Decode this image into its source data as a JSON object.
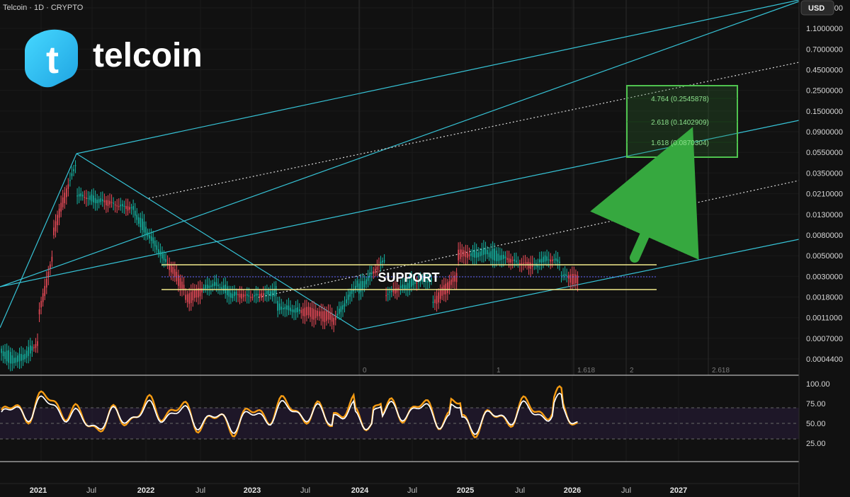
{
  "header": {
    "symbol_line": "Telcoin · 1D · CRYPTO",
    "currency": "USD"
  },
  "brand": {
    "name": "telcoin",
    "icon": "telcoin-logo-icon",
    "icon_letter": "t"
  },
  "annotations": {
    "support_label": "SUPPORT",
    "target_box": [
      "4.764 (0.2545878)",
      "2.618 (0.1402909)",
      "1.618 (0.0870304)"
    ]
  },
  "colors": {
    "channel": "#36c3d6",
    "dotted": "#d8d8d8",
    "support": "#f1ea8b",
    "target_border": "#4fc34f",
    "target_fill": "#2d6f2d",
    "arrow": "#36a83f",
    "rsi_main": "#f59b12",
    "rsi_signal": "#ffffff",
    "candle_up": "#14b8a6",
    "candle_down": "#ef4c5a",
    "axis_text": "#d7d7d7"
  },
  "chart_data": {
    "type": "line",
    "title": "Telcoin · 1D · CRYPTO",
    "currency": "USD",
    "y_scale": "log",
    "y_ticks": [
      "1.8000000",
      "1.1000000",
      "0.7000000",
      "0.4500000",
      "0.2500000",
      "0.1500000",
      "0.0900000",
      "0.0550000",
      "0.0350000",
      "0.0210000",
      "0.0130000",
      "0.0080000",
      "0.0050000",
      "0.0030000",
      "0.0018000",
      "0.0011000",
      "0.0007000",
      "0.0004400"
    ],
    "x_ticks": [
      {
        "label": "2021",
        "year": true
      },
      {
        "label": "Jul",
        "year": false
      },
      {
        "label": "2022",
        "year": true
      },
      {
        "label": "Jul",
        "year": false
      },
      {
        "label": "2023",
        "year": true
      },
      {
        "label": "Jul",
        "year": false
      },
      {
        "label": "2024",
        "year": true
      },
      {
        "label": "Jul",
        "year": false
      },
      {
        "label": "2025",
        "year": true
      },
      {
        "label": "Jul",
        "year": false
      },
      {
        "label": "2026",
        "year": true
      },
      {
        "label": "Jul",
        "year": false
      },
      {
        "label": "2027",
        "year": true
      }
    ],
    "fib_time_labels": [
      "0",
      "1",
      "1.618",
      "2",
      "2.618"
    ],
    "rsi_ticks": [
      "100.00",
      "75.00",
      "50.00",
      "25.00"
    ],
    "rsi_levels": [
      70,
      50,
      30
    ],
    "support_zone": {
      "upper": 0.0044,
      "mid": 0.0032,
      "lower": 0.00225
    },
    "target_levels": [
      {
        "ratio": 4.764,
        "price": 0.2545878
      },
      {
        "ratio": 2.618,
        "price": 0.1402909
      },
      {
        "ratio": 1.618,
        "price": 0.0870304
      }
    ]
  }
}
